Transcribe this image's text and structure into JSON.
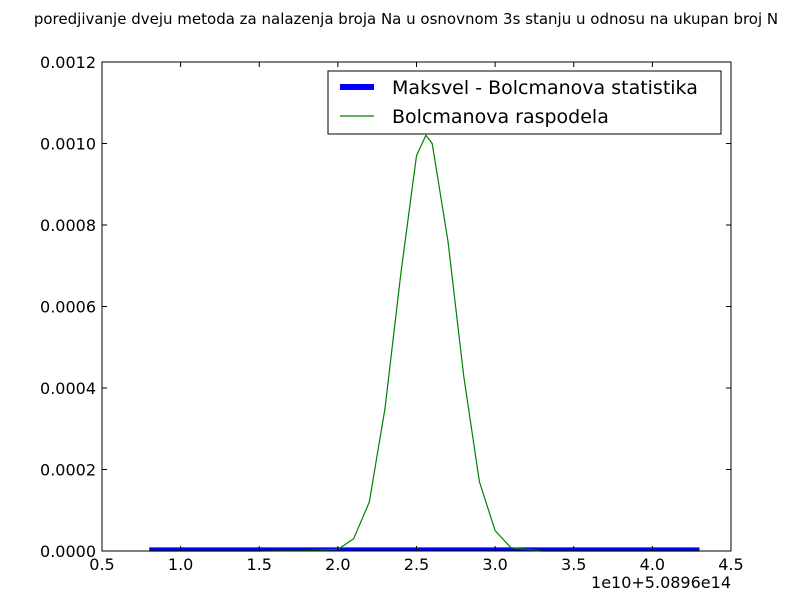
{
  "chart_data": {
    "type": "line",
    "title": "poredjivanje dveju metoda za nalazenja broja Na u osnovnom 3s stanju u odnosu na ukupan broj N",
    "xlabel": "",
    "ylabel": "",
    "x_offset_text": "1e10+5.0896e14",
    "xlim": [
      0.5,
      4.5
    ],
    "ylim": [
      0,
      0.0012
    ],
    "x_ticks": [
      "0.5",
      "1.0",
      "1.5",
      "2.0",
      "2.5",
      "3.0",
      "3.5",
      "4.0",
      "4.5"
    ],
    "y_ticks": [
      "0.0000",
      "0.0002",
      "0.0004",
      "0.0006",
      "0.0008",
      "0.0010",
      "0.0012"
    ],
    "grid": false,
    "legend_position": "top-right",
    "series": [
      {
        "name": "Maksvel - Bolcmanova statistika",
        "color": "#0000ff",
        "style": "thick-line",
        "x": [
          0.8,
          1.0,
          1.5,
          2.0,
          2.5,
          3.0,
          3.5,
          4.0,
          4.3
        ],
        "y": [
          4e-06,
          4e-06,
          4e-06,
          4e-06,
          4e-06,
          4e-06,
          4e-06,
          4e-06,
          4e-06
        ]
      },
      {
        "name": "Bolcmanova raspodela",
        "color": "#008000",
        "style": "thin-line",
        "x": [
          0.8,
          1.0,
          1.5,
          1.8,
          2.0,
          2.1,
          2.2,
          2.3,
          2.4,
          2.5,
          2.56,
          2.6,
          2.7,
          2.8,
          2.9,
          3.0,
          3.1,
          3.3,
          3.5,
          4.0,
          4.3
        ],
        "y": [
          0.0,
          0.0,
          0.0,
          1e-06,
          4e-06,
          3e-05,
          0.00012,
          0.00035,
          0.00068,
          0.00097,
          0.00102,
          0.001,
          0.00076,
          0.00043,
          0.00017,
          5e-05,
          8e-06,
          0.0,
          0.0,
          0.0,
          0.0
        ]
      }
    ]
  }
}
